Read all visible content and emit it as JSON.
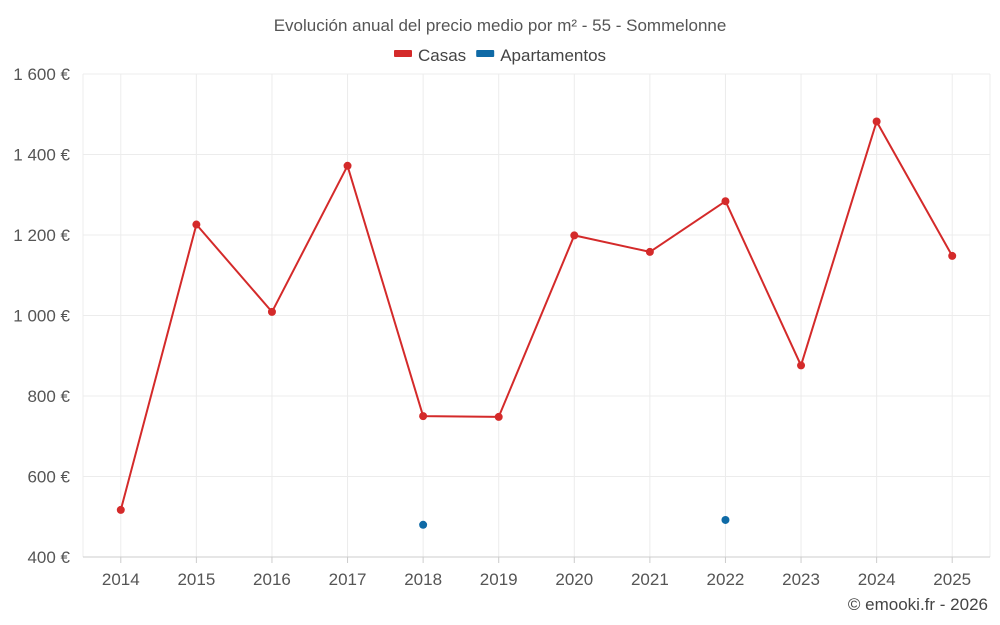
{
  "colors": {
    "casas": "#d42a2a",
    "apartamentos": "#0f6aa6"
  },
  "chart_data": {
    "type": "line",
    "title": "Evolución anual del precio medio por m² - 55 - Sommelonne",
    "x": [
      "2014",
      "2015",
      "2016",
      "2017",
      "2018",
      "2019",
      "2020",
      "2021",
      "2022",
      "2023",
      "2024",
      "2025"
    ],
    "ylim": [
      400,
      1600
    ],
    "yticks": [
      400,
      600,
      800,
      1000,
      1200,
      1400,
      1600
    ],
    "ytick_labels": [
      "400 €",
      "600 €",
      "800 €",
      "1 000 €",
      "1 200 €",
      "1 400 €",
      "1 600 €"
    ],
    "grid": true,
    "legend_position": "top-center",
    "series": [
      {
        "name": "Casas",
        "color": "#d42a2a",
        "mode": "lines+markers",
        "values": [
          517,
          1226,
          1009,
          1372,
          750,
          748,
          1199,
          1158,
          1284,
          876,
          1482,
          1148
        ]
      },
      {
        "name": "Apartamentos",
        "color": "#0f6aa6",
        "mode": "markers",
        "values": [
          null,
          null,
          null,
          null,
          480,
          null,
          null,
          null,
          492,
          null,
          null,
          null
        ]
      }
    ]
  },
  "credit": "© emooki.fr - 2026"
}
